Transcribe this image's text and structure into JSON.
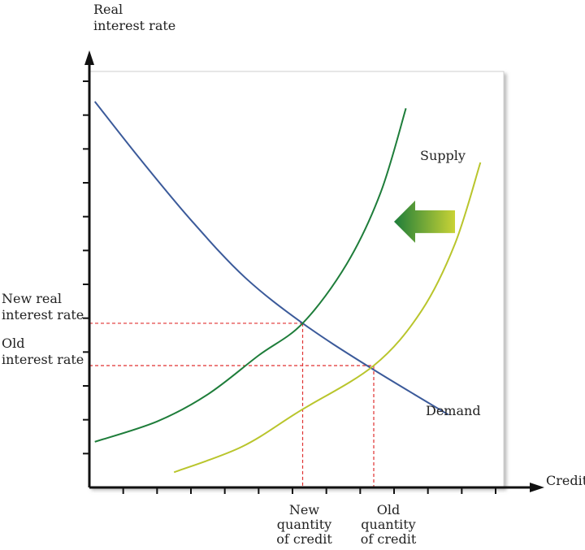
{
  "chart_data": {
    "type": "line",
    "title": "",
    "xlabel": "Credit",
    "ylabel": [
      "Real",
      "interest rate"
    ],
    "xlim": [
      0,
      12
    ],
    "ylim": [
      0,
      12
    ],
    "grid": false,
    "series": [
      {
        "name": "Demand",
        "color": "#3b5a9a",
        "points": [
          [
            0.16,
            11.4
          ],
          [
            1.5,
            9.7
          ],
          [
            3,
            7.9
          ],
          [
            4.6,
            6.2
          ],
          [
            6.3,
            4.85
          ],
          [
            8.2,
            3.6
          ],
          [
            10.6,
            2.15
          ]
        ]
      },
      {
        "name": "Supply",
        "color": "#1e7d3a",
        "points": [
          [
            0.16,
            1.35
          ],
          [
            2,
            1.95
          ],
          [
            3.5,
            2.75
          ],
          [
            5,
            3.9
          ],
          [
            6.3,
            4.85
          ],
          [
            7.6,
            6.6
          ],
          [
            8.6,
            8.7
          ],
          [
            9.35,
            11.2
          ]
        ]
      },
      {
        "name": "",
        "color": "#b9c52c",
        "points": [
          [
            2.5,
            0.45
          ],
          [
            4.5,
            1.2
          ],
          [
            6.2,
            2.25
          ],
          [
            8.4,
            3.6
          ],
          [
            9.8,
            5.2
          ],
          [
            10.8,
            7.2
          ],
          [
            11.55,
            9.6
          ]
        ]
      }
    ],
    "reference_levels": {
      "new_rate_y": 4.85,
      "new_quantity_x": 6.3,
      "old_rate_y": 3.6,
      "old_quantity_x": 8.4
    },
    "arrow": {
      "direction": "left",
      "from_x": 10.8,
      "to_x": 9.0,
      "y": 7.85,
      "color_start": "#1e7d3a",
      "color_end": "#c9d335"
    },
    "annotations": {
      "supply": "Supply",
      "demand": "Demand",
      "new_rate": [
        "New real",
        "interest rate"
      ],
      "old_rate": [
        "Old",
        "interest rate"
      ],
      "new_quantity": [
        "New",
        "quantity",
        "of credit"
      ],
      "old_quantity": [
        "Old",
        "quantity",
        "of credit"
      ]
    },
    "colors": {
      "axis": "#111111",
      "guide": "#e03030"
    }
  }
}
